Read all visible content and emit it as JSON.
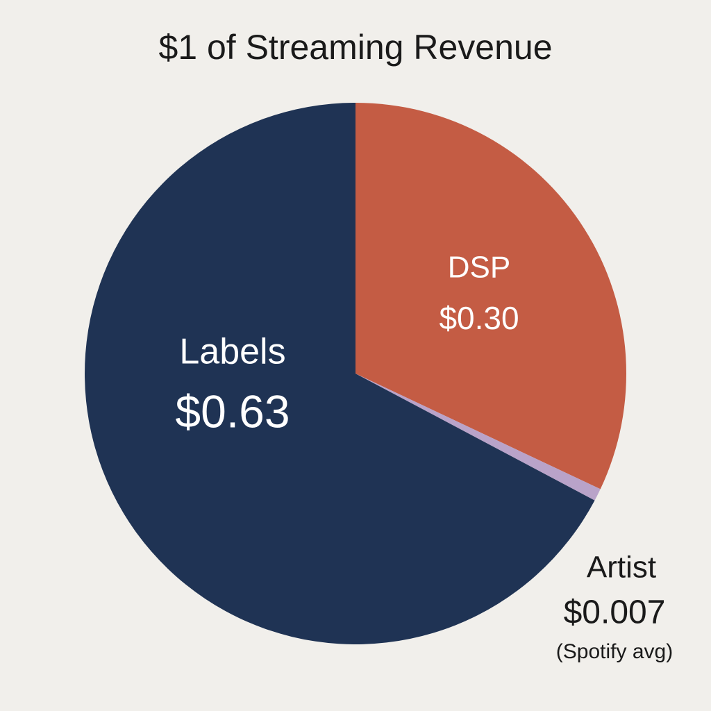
{
  "chart_data": {
    "type": "pie",
    "title": "$1 of Streaming Revenue",
    "categories": [
      "DSP",
      "Artist",
      "Labels"
    ],
    "values": [
      0.3,
      0.007,
      0.63
    ],
    "value_labels": [
      "$0.30",
      "$0.007",
      "$0.63"
    ],
    "colors": [
      "#c45c44",
      "#b9a3c9",
      "#1f3354"
    ],
    "annotations": [
      "(Spotify avg)"
    ]
  }
}
